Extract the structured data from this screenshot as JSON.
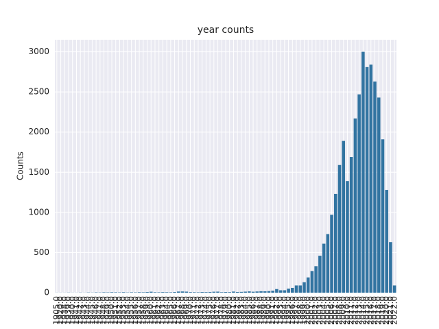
{
  "chart_data": {
    "type": "bar",
    "title": "year counts",
    "y_label": "Counts",
    "categories": [
      "1905.0",
      "1920.0",
      "1938.0",
      "1939.0",
      "1940.0",
      "1941.0",
      "1942.0",
      "1943.0",
      "1944.0",
      "1945.0",
      "1946.0",
      "1947.0",
      "1948.0",
      "1949.0",
      "1950.0",
      "1951.0",
      "1952.0",
      "1953.0",
      "1954.0",
      "1955.0",
      "1956.0",
      "1957.0",
      "1958.0",
      "1959.0",
      "1960.0",
      "1961.0",
      "1962.0",
      "1963.0",
      "1964.0",
      "1965.0",
      "1966.0",
      "1967.0",
      "1968.0",
      "1969.0",
      "1970.0",
      "1971.0",
      "1972.0",
      "1973.0",
      "1974.0",
      "1975.0",
      "1976.0",
      "1977.0",
      "1978.0",
      "1979.0",
      "1980.0",
      "1981.0",
      "1982.0",
      "1983.0",
      "1984.0",
      "1985.0",
      "1986.0",
      "1987.0",
      "1988.0",
      "1989.0",
      "1990.0",
      "1991.0",
      "1992.0",
      "1993.0",
      "1994.0",
      "1995.0",
      "1996.0",
      "1997.0",
      "1998.0",
      "1999.0",
      "2000.0",
      "2001.0",
      "2002.0",
      "2003.0",
      "2004.0",
      "2005.0",
      "2006.0",
      "2007.0",
      "2008.0",
      "2009.0",
      "2010.0",
      "2011.0",
      "2012.0",
      "2013.0",
      "2014.0",
      "2015.0",
      "2016.0",
      "2017.0",
      "2018.0",
      "2019.0",
      "2020.0",
      "2021.0",
      "2022.0"
    ],
    "values": [
      1,
      1,
      1,
      2,
      1,
      1,
      2,
      1,
      3,
      2,
      4,
      3,
      5,
      4,
      6,
      5,
      4,
      6,
      3,
      5,
      4,
      6,
      5,
      8,
      12,
      6,
      5,
      7,
      6,
      5,
      8,
      14,
      15,
      13,
      7,
      6,
      5,
      8,
      7,
      9,
      12,
      13,
      6,
      8,
      7,
      14,
      9,
      10,
      13,
      16,
      12,
      15,
      18,
      17,
      20,
      25,
      45,
      30,
      30,
      50,
      60,
      90,
      90,
      130,
      190,
      270,
      330,
      460,
      610,
      730,
      970,
      1230,
      1590,
      1890,
      1390,
      1690,
      2170,
      2470,
      3000,
      2810,
      2840,
      2630,
      2430,
      1910,
      1280,
      630,
      90
    ],
    "color": "#3274a1",
    "ylim": [
      0,
      3150
    ],
    "yticks": [
      0,
      500,
      1000,
      1500,
      2000,
      2500,
      3000
    ],
    "grid": true
  }
}
